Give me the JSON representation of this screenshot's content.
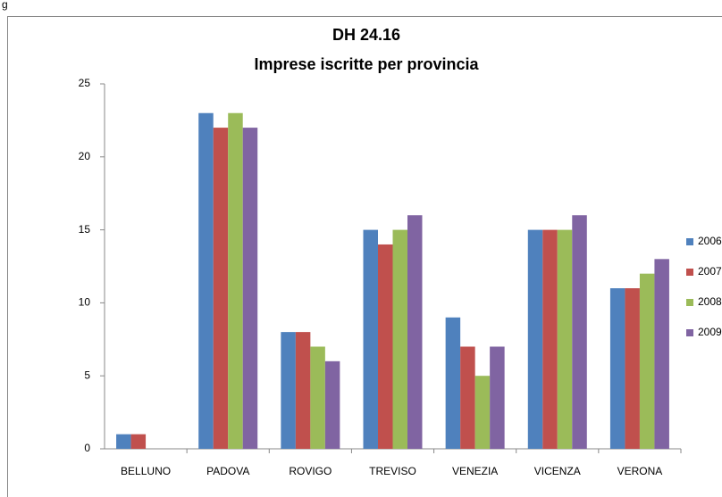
{
  "caption": "g",
  "chart_data": {
    "type": "bar",
    "title": "DH 24.16",
    "subtitle": "Imprese iscritte per provincia",
    "categories": [
      "BELLUNO",
      "PADOVA",
      "ROVIGO",
      "TREVISO",
      "VENEZIA",
      "VICENZA",
      "VERONA"
    ],
    "series": [
      {
        "name": "2006",
        "color": "#4f81bd",
        "values": [
          1,
          23,
          8,
          15,
          9,
          15,
          11
        ]
      },
      {
        "name": "2007",
        "color": "#c0504d",
        "values": [
          1,
          22,
          8,
          14,
          7,
          15,
          11
        ]
      },
      {
        "name": "2008",
        "color": "#9bbb59",
        "values": [
          null,
          23,
          7,
          15,
          5,
          15,
          12
        ]
      },
      {
        "name": "2009",
        "color": "#8064a2",
        "values": [
          null,
          22,
          6,
          16,
          7,
          16,
          13
        ]
      }
    ],
    "ylim": [
      0,
      25
    ],
    "yticks": [
      0,
      5,
      10,
      15,
      20,
      25
    ],
    "grid": false,
    "legend": "right"
  }
}
